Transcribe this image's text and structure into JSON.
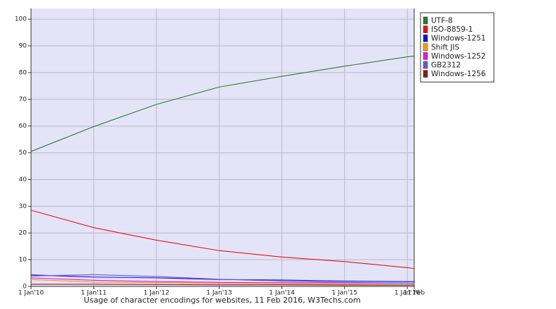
{
  "chart_data": {
    "type": "line",
    "title": "Usage of character encodings for websites, 11 Feb 2016, W3Techs.com",
    "x": [
      2010,
      2011,
      2012,
      2013,
      2014,
      2015,
      2016,
      2016.11
    ],
    "xlim": [
      2010,
      2016.11
    ],
    "xticks": [
      {
        "value": 2010,
        "label": "1 Jan'10"
      },
      {
        "value": 2011,
        "label": "1 Jan'11"
      },
      {
        "value": 2012,
        "label": "1 Jan'12"
      },
      {
        "value": 2013,
        "label": "1 Jan'13"
      },
      {
        "value": 2014,
        "label": "1 Jan'14"
      },
      {
        "value": 2015,
        "label": "1 Jan'15"
      },
      {
        "value": 2016,
        "label": "1 Jan'16"
      },
      {
        "value": 2016.11,
        "label": "11 Feb"
      }
    ],
    "ylim": [
      0,
      104
    ],
    "yticks": [
      0,
      10,
      20,
      30,
      40,
      50,
      60,
      70,
      80,
      90,
      100
    ],
    "grid": true,
    "legend": "right",
    "series": [
      {
        "name": "UTF-8",
        "color": "#2e7d32",
        "values": [
          50.5,
          59.8,
          68.1,
          74.6,
          78.6,
          82.4,
          85.9,
          86.2
        ]
      },
      {
        "name": "ISO-8859-1",
        "color": "#ee1111",
        "values": [
          28.5,
          22,
          17.3,
          13.4,
          11,
          9.3,
          7,
          6.7
        ]
      },
      {
        "name": "Windows-1251",
        "color": "#1111dd",
        "values": [
          4.3,
          3.5,
          3.2,
          2.6,
          2.4,
          2.0,
          1.8,
          1.8
        ]
      },
      {
        "name": "Shift JIS",
        "color": "#ff9900",
        "values": [
          2.6,
          1.6,
          1.4,
          1.2,
          1.0,
          0.8,
          0.6,
          0.6
        ]
      },
      {
        "name": "Windows-1252",
        "color": "#ee11ee",
        "values": [
          3.2,
          2.3,
          1.8,
          1.5,
          1.4,
          1.3,
          1.2,
          1.2
        ]
      },
      {
        "name": "GB2312",
        "color": "#6a5acd",
        "values": [
          3.9,
          4.4,
          3.7,
          2.7,
          2.0,
          1.5,
          1.2,
          1.2
        ]
      },
      {
        "name": "Windows-1256",
        "color": "#8b1a1a",
        "values": [
          0.8,
          0.8,
          0.7,
          0.6,
          0.6,
          0.5,
          0.5,
          0.5
        ]
      }
    ]
  }
}
